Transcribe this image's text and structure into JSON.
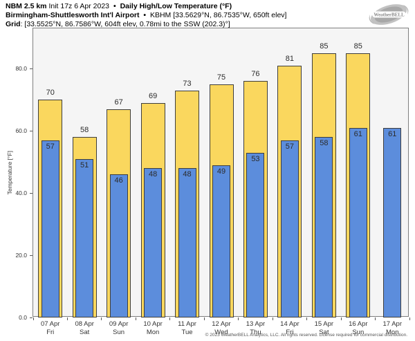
{
  "header": {
    "model": "NBM 2.5 km",
    "init": "Init 17z 6 Apr 2023",
    "sep": "•",
    "title": "Daily High/Low Temperature (°F)",
    "station_name": "Birmingham-Shuttlesworth Int'l Airport",
    "station_details": "KBHM [33.5629°N, 86.7535°W, 650ft elev]",
    "grid_label": "Grid",
    "grid_details": ": [33.5525°N, 86.7586°W, 604ft elev, 0.78mi to the SSW (202.3)°]"
  },
  "logo": {
    "brand": "WeatherBELL"
  },
  "chart_data": {
    "type": "bar",
    "bar_style": "overlaid-high-low",
    "title": "Daily High/Low Temperature (°F)",
    "ylabel": "Temperature [°F]",
    "yticks": [
      0,
      20,
      40,
      60,
      80
    ],
    "ytick_format": "one_decimal",
    "ylim": [
      0,
      92.9
    ],
    "grid": false,
    "legend": "none",
    "categories": [
      {
        "date": "07 Apr",
        "day": "Fri"
      },
      {
        "date": "08 Apr",
        "day": "Sat"
      },
      {
        "date": "09 Apr",
        "day": "Sun"
      },
      {
        "date": "10 Apr",
        "day": "Mon"
      },
      {
        "date": "11 Apr",
        "day": "Tue"
      },
      {
        "date": "12 Apr",
        "day": "Wed"
      },
      {
        "date": "13 Apr",
        "day": "Thu"
      },
      {
        "date": "14 Apr",
        "day": "Fri"
      },
      {
        "date": "15 Apr",
        "day": "Sat"
      },
      {
        "date": "16 Apr",
        "day": "Sun"
      },
      {
        "date": "17 Apr",
        "day": "Mon"
      }
    ],
    "series": [
      {
        "name": "Daily High",
        "color": "#FAD75E",
        "values": [
          70,
          58,
          67,
          69,
          73,
          75,
          76,
          81,
          85,
          85,
          null
        ]
      },
      {
        "name": "Daily Low",
        "color": "#5C8DDC",
        "values": [
          57,
          51,
          46,
          48,
          48,
          49,
          53,
          57,
          58,
          61,
          61
        ]
      }
    ]
  },
  "footer": {
    "copyright": "© 2023 WeatherBELL Analytics, LLC. All rights reserved. License required for commercial distribution."
  }
}
